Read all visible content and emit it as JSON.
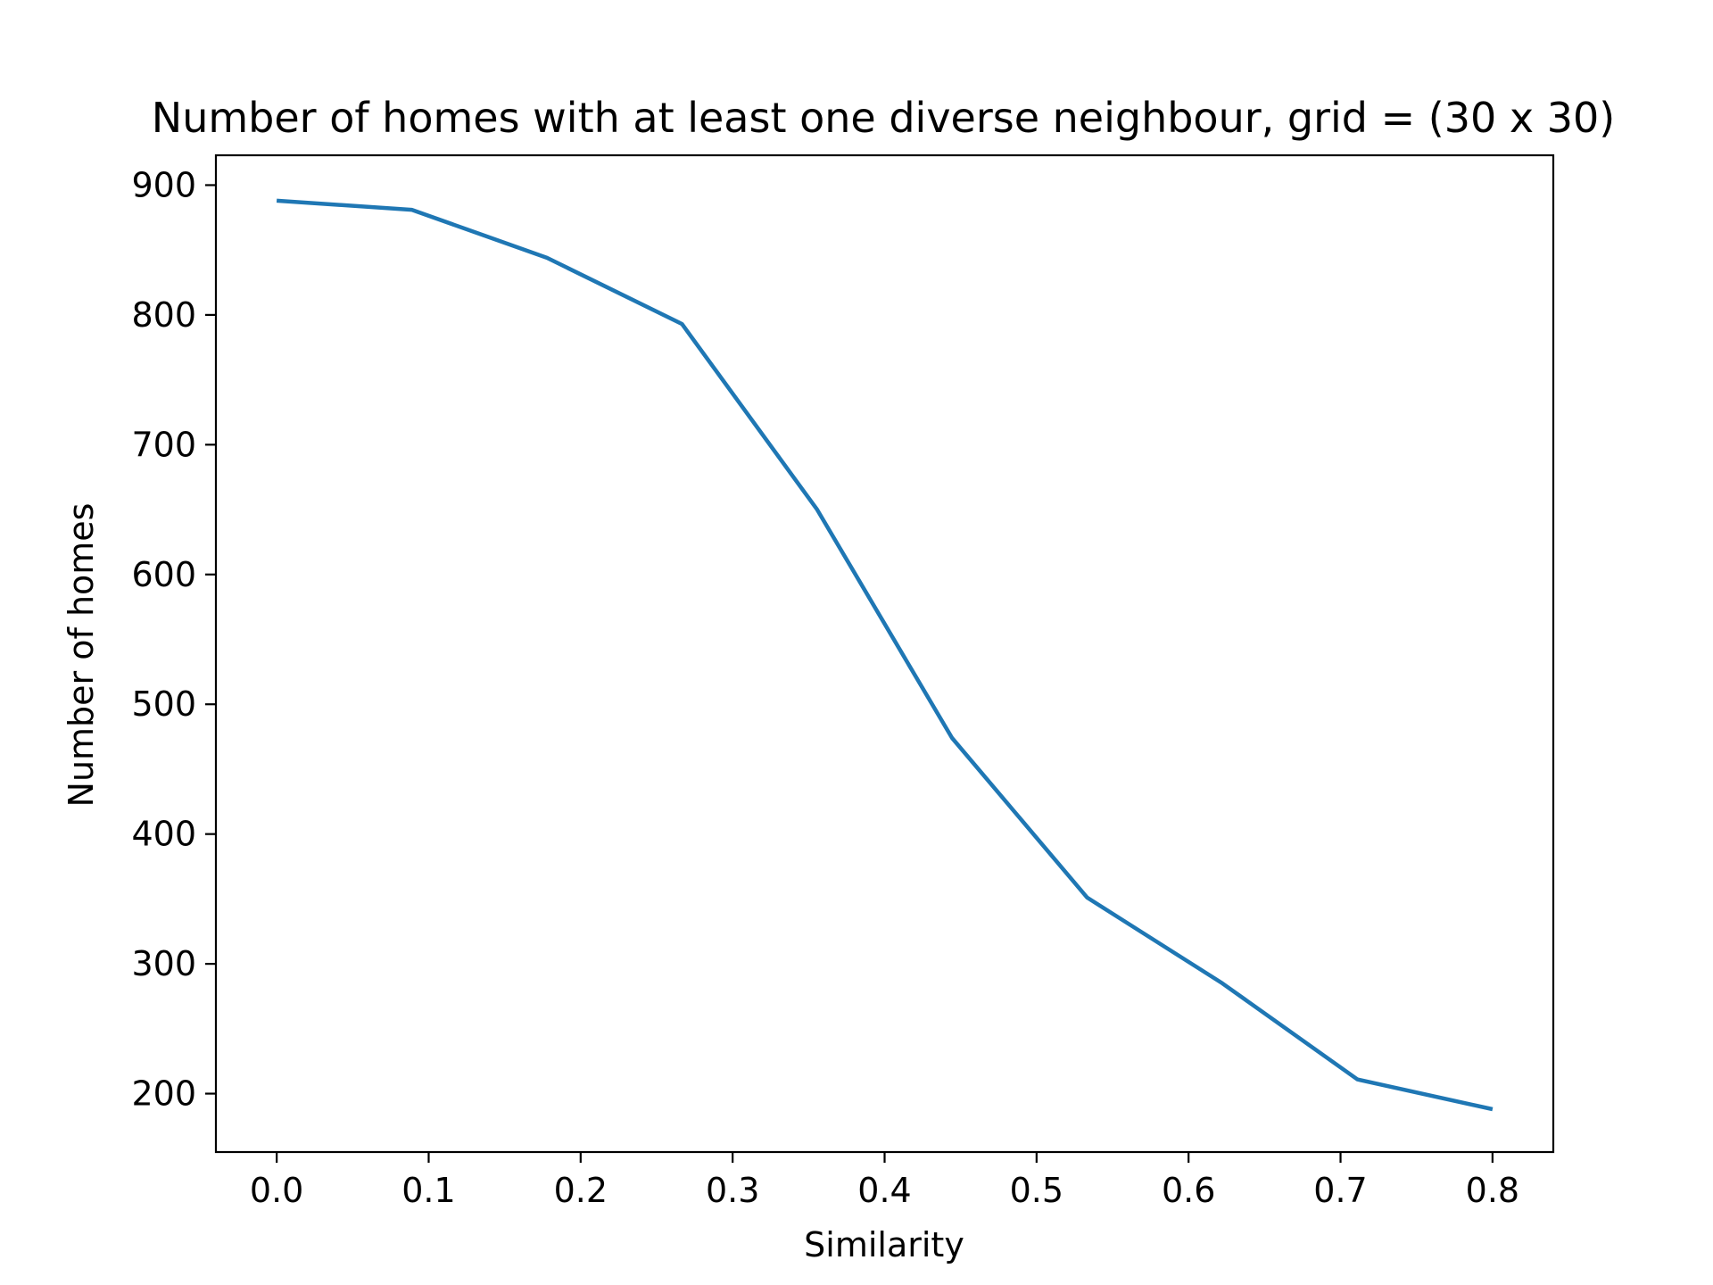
{
  "chart_data": {
    "type": "line",
    "title": "Number of homes with at least one diverse neighbour, grid = (30 x 30)",
    "xlabel": "Similarity",
    "ylabel": "Number of homes",
    "xlim": [
      -0.04,
      0.84
    ],
    "ylim": [
      155,
      923
    ],
    "xticks": [
      0.0,
      0.1,
      0.2,
      0.3,
      0.4,
      0.5,
      0.6,
      0.7,
      0.8
    ],
    "xtick_labels": [
      "0.0",
      "0.1",
      "0.2",
      "0.3",
      "0.4",
      "0.5",
      "0.6",
      "0.7",
      "0.8"
    ],
    "yticks": [
      200,
      300,
      400,
      500,
      600,
      700,
      800,
      900
    ],
    "ytick_labels": [
      "200",
      "300",
      "400",
      "500",
      "600",
      "700",
      "800",
      "900"
    ],
    "grid": false,
    "series": [
      {
        "color": "#1f77b4",
        "x": [
          0.0,
          0.0889,
          0.1778,
          0.2667,
          0.3556,
          0.4444,
          0.5333,
          0.6222,
          0.7111,
          0.8
        ],
        "y": [
          888,
          881,
          844,
          793,
          650,
          474,
          351,
          285,
          211,
          188
        ]
      }
    ]
  }
}
